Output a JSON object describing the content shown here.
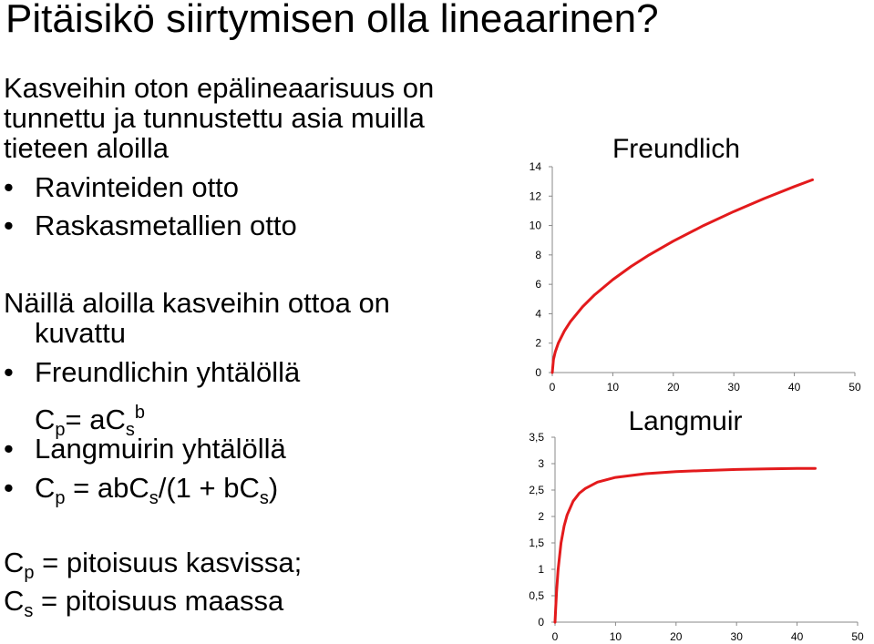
{
  "title": "Pitäisikö siirtymisen olla lineaarinen?",
  "intro": {
    "line1": "Kasveihin oton epälineaarisuus on",
    "line2": "tunnettu ja tunnustettu asia muilla",
    "line3": "tieteen aloilla"
  },
  "fields": [
    "Ravinteiden otto",
    "Raskasmetallien otto"
  ],
  "models_intro": {
    "line1": "Näillä aloilla kasveihin ottoa on",
    "line2": "kuvattu"
  },
  "models": {
    "freundlich_label": "Freundlichin yhtälöllä",
    "freundlich_eq": {
      "lhs": "C",
      "lhs_sub": "p",
      "mid": "= aC",
      "mid_sub": "s",
      "sup": "b"
    },
    "langmuir_label": "Langmuirin yhtälöllä",
    "langmuir_eq": {
      "lhs": "C",
      "lhs_sub": "p",
      "mid": " = abC",
      "mid_sub": "s",
      "mid2": "/(1 + bC",
      "mid2_sub": "s",
      "end": ")"
    }
  },
  "definitions": {
    "cp": {
      "sym": "C",
      "sub": "p",
      "text": " = pitoisuus kasvissa;"
    },
    "cs": {
      "sym": "C",
      "sub": "s",
      "text": " = pitoisuus maassa"
    }
  },
  "bullet_char": "•",
  "chart_data": [
    {
      "type": "line",
      "title": "Freundlich",
      "x_ticks": [
        "0",
        "10",
        "20",
        "30",
        "40",
        "50"
      ],
      "y_ticks": [
        "0",
        "2",
        "4",
        "6",
        "8",
        "10",
        "12",
        "14"
      ],
      "xlim": [
        0,
        50
      ],
      "ylim": [
        0,
        14
      ],
      "series": [
        {
          "color": "#e31a1c",
          "x": [
            0,
            0.2,
            0.5,
            1,
            2,
            3,
            5,
            7,
            10,
            13,
            16,
            20,
            25,
            30,
            35,
            40,
            43
          ],
          "y": [
            0,
            0.89,
            1.41,
            2.0,
            2.83,
            3.46,
            4.47,
            5.29,
            6.32,
            7.21,
            8.0,
            8.94,
            10.0,
            10.95,
            11.83,
            12.65,
            13.11
          ]
        }
      ]
    },
    {
      "type": "line",
      "title": "Langmuir",
      "x_ticks": [
        "0",
        "10",
        "20",
        "30",
        "40",
        "50"
      ],
      "y_ticks": [
        "0",
        "0,5",
        "1",
        "1,5",
        "2",
        "2,5",
        "3",
        "3,5"
      ],
      "xlim": [
        0,
        50
      ],
      "ylim": [
        0,
        3.5
      ],
      "series": [
        {
          "color": "#e31a1c",
          "x": [
            0,
            0.1,
            0.25,
            0.5,
            1,
            1.5,
            2,
            3,
            4,
            5,
            7,
            10,
            15,
            20,
            25,
            30,
            35,
            40,
            43
          ],
          "y": [
            0,
            0.25,
            0.58,
            0.98,
            1.5,
            1.82,
            2.03,
            2.29,
            2.44,
            2.53,
            2.65,
            2.74,
            2.81,
            2.85,
            2.87,
            2.89,
            2.9,
            2.91,
            2.91
          ]
        }
      ]
    }
  ]
}
